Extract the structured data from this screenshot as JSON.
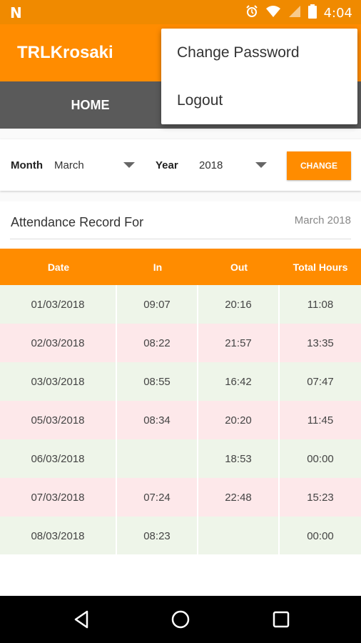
{
  "status_bar": {
    "time": "4:04",
    "icons": [
      "notification-n-icon",
      "alarm-icon",
      "wifi-icon",
      "signal-icon",
      "battery-icon"
    ]
  },
  "app_bar": {
    "title": "TRLKrosaki"
  },
  "tabs": [
    {
      "label": "HOME"
    }
  ],
  "overflow_menu": {
    "items": [
      {
        "label": "Change Password"
      },
      {
        "label": "Logout"
      }
    ]
  },
  "filter": {
    "month_label": "Month",
    "month_value": "March",
    "year_label": "Year",
    "year_value": "2018",
    "change_button": "CHANGE"
  },
  "record": {
    "label": "Attendance Record For",
    "period": "March 2018"
  },
  "table": {
    "headers": [
      "Date",
      "In",
      "Out",
      "Total Hours"
    ],
    "rows": [
      {
        "date": "01/03/2018",
        "in": "09:07",
        "out": "20:16",
        "total": "11:08",
        "status": "ok"
      },
      {
        "date": "02/03/2018",
        "in": "08:22",
        "out": "21:57",
        "total": "13:35",
        "status": "late"
      },
      {
        "date": "03/03/2018",
        "in": "08:55",
        "out": "16:42",
        "total": "07:47",
        "status": "ok"
      },
      {
        "date": "05/03/2018",
        "in": "08:34",
        "out": "20:20",
        "total": "11:45",
        "status": "late"
      },
      {
        "date": "06/03/2018",
        "in": "",
        "out": "18:53",
        "total": "00:00",
        "status": "ok"
      },
      {
        "date": "07/03/2018",
        "in": "07:24",
        "out": "22:48",
        "total": "15:23",
        "status": "late"
      },
      {
        "date": "08/03/2018",
        "in": "08:23",
        "out": "",
        "total": "00:00",
        "status": "ok"
      }
    ]
  },
  "colors": {
    "accent": "#ff8c00",
    "status_bar": "#f08a00",
    "tab_bar": "#5a5a5a",
    "row_ok": "#eef5e9",
    "row_late": "#fde8ea"
  },
  "nav_bar": [
    "back-icon",
    "home-icon",
    "recents-icon"
  ]
}
